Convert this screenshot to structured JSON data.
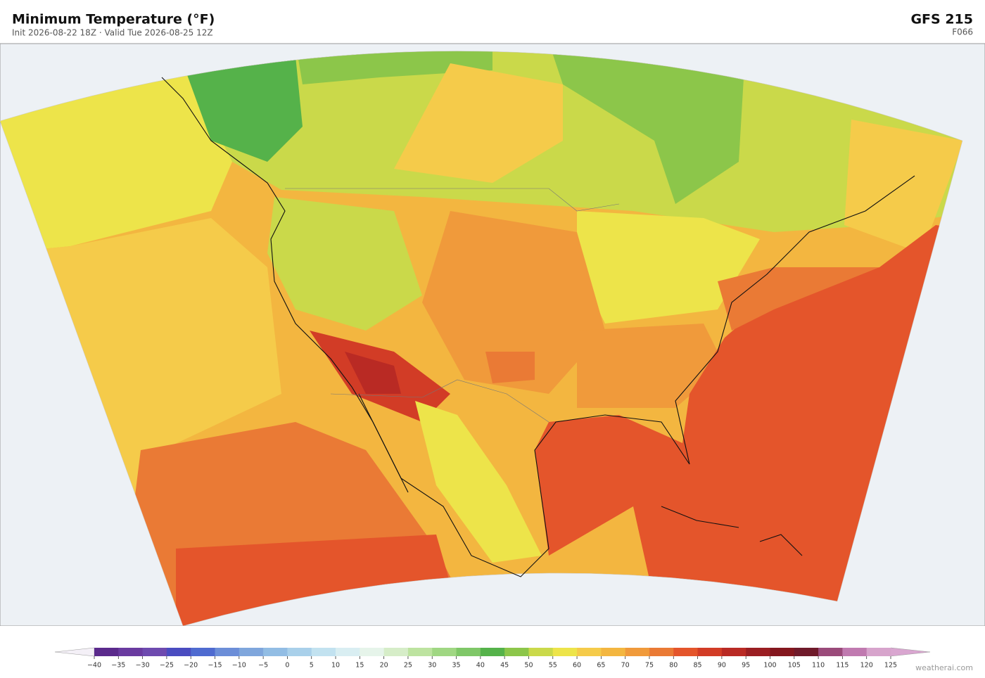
{
  "header": {
    "title": "Minimum Temperature  (°F)",
    "subtitle": "Init 2026-08-22 18Z  ·  Valid Tue 2026-08-25 12Z",
    "model": "GFS  215",
    "forecast_hour": "F066"
  },
  "colorbar": {
    "ticks": [
      {
        "value": -40,
        "label": "−40"
      },
      {
        "value": -35,
        "label": "−35"
      },
      {
        "value": -30,
        "label": "−30"
      },
      {
        "value": -25,
        "label": "−25"
      },
      {
        "value": -20,
        "label": "−20"
      },
      {
        "value": -15,
        "label": "−15"
      },
      {
        "value": -10,
        "label": "−10"
      },
      {
        "value": -5,
        "label": "−5"
      },
      0,
      5,
      10,
      15,
      20,
      25,
      30,
      35,
      40,
      45,
      50,
      55,
      60,
      65,
      70,
      75,
      80,
      85,
      90,
      95,
      100,
      105,
      110,
      115,
      120,
      125
    ],
    "colors": [
      "#5b2a8c",
      "#6a3ba0",
      "#6e4aaf",
      "#4a4cc0",
      "#4f6bd0",
      "#6c8ed8",
      "#7fa6dc",
      "#92bde4",
      "#a9d0ea",
      "#c2e2f0",
      "#d9eef2",
      "#e6f4ea",
      "#d6edc8",
      "#bde3a0",
      "#a0d783",
      "#7fc768",
      "#55b24a",
      "#8cc64a",
      "#cad94a",
      "#ede44a",
      "#f5cb4a",
      "#f3b640",
      "#f09a3b",
      "#ea7a35",
      "#e4552b",
      "#d23c26",
      "#b92a24",
      "#9a1e22",
      "#84171e",
      "#6f1a2a",
      "#9a4a7a",
      "#c07ab0",
      "#d7a4cc"
    ],
    "under_color": "#f4f0f7",
    "over_color": "#d9a6d0"
  },
  "footer": {
    "credit": "weatherai.com"
  }
}
